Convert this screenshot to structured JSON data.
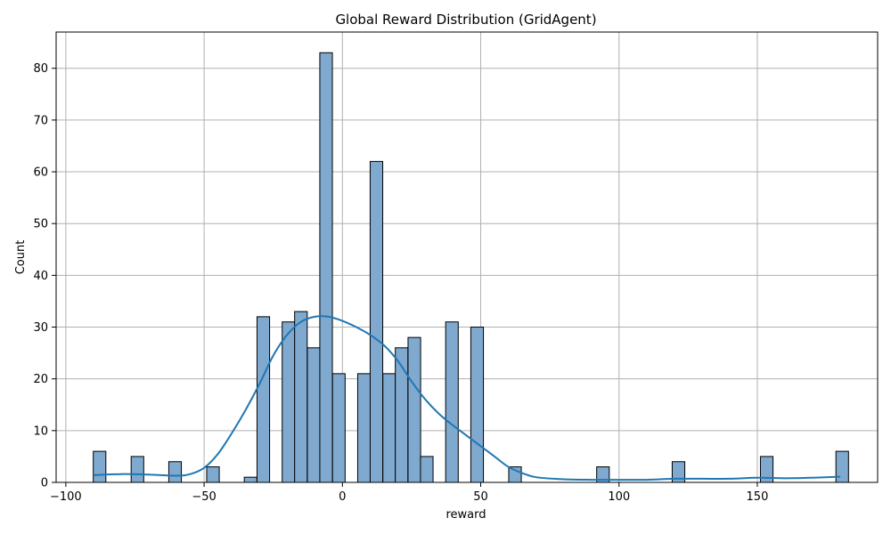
{
  "chart_data": {
    "type": "bar",
    "subtype": "histogram-with-kde",
    "title": "Global Reward Distribution (GridAgent)",
    "xlabel": "reward",
    "ylabel": "Count",
    "xlim": [
      -103.5,
      193.5
    ],
    "ylim": [
      0,
      87
    ],
    "xticks": [
      -100,
      -50,
      0,
      50,
      100,
      150
    ],
    "xtick_labels": [
      "−100",
      "−50",
      "0",
      "50",
      "100",
      "150"
    ],
    "yticks": [
      0,
      10,
      20,
      30,
      40,
      50,
      60,
      70,
      80
    ],
    "ytick_labels": [
      "0",
      "10",
      "20",
      "30",
      "40",
      "50",
      "60",
      "70",
      "80"
    ],
    "grid": true,
    "bin_width": 4.55,
    "bins": [
      {
        "x": -87.8,
        "count": 6
      },
      {
        "x": -74.1,
        "count": 5
      },
      {
        "x": -60.5,
        "count": 4
      },
      {
        "x": -46.8,
        "count": 3
      },
      {
        "x": -33.2,
        "count": 1
      },
      {
        "x": -28.6,
        "count": 32
      },
      {
        "x": -19.5,
        "count": 31
      },
      {
        "x": -15.0,
        "count": 33
      },
      {
        "x": -10.4,
        "count": 26
      },
      {
        "x": -5.9,
        "count": 83
      },
      {
        "x": -1.3,
        "count": 21
      },
      {
        "x": 7.8,
        "count": 21
      },
      {
        "x": 12.3,
        "count": 62
      },
      {
        "x": 16.9,
        "count": 21
      },
      {
        "x": 21.4,
        "count": 26
      },
      {
        "x": 26.0,
        "count": 28
      },
      {
        "x": 30.5,
        "count": 5
      },
      {
        "x": 39.6,
        "count": 31
      },
      {
        "x": 48.7,
        "count": 30
      },
      {
        "x": 62.4,
        "count": 3
      },
      {
        "x": 94.2,
        "count": 3
      },
      {
        "x": 121.5,
        "count": 4
      },
      {
        "x": 153.4,
        "count": 5
      },
      {
        "x": 180.7,
        "count": 6
      }
    ],
    "kde": {
      "color": "#1f77b4",
      "x": [
        -90,
        -80,
        -70,
        -60,
        -55,
        -50,
        -45,
        -40,
        -35,
        -30,
        -25,
        -20,
        -15,
        -10,
        -5,
        0,
        5,
        10,
        15,
        20,
        25,
        30,
        35,
        40,
        45,
        50,
        55,
        60,
        65,
        70,
        80,
        90,
        100,
        110,
        120,
        130,
        140,
        150,
        160,
        170,
        180
      ],
      "y": [
        1.4,
        1.6,
        1.5,
        1.3,
        1.6,
        2.8,
        5.5,
        9.5,
        14.0,
        19.0,
        24.5,
        28.5,
        31.0,
        32.0,
        32.0,
        31.2,
        30.0,
        28.5,
        26.5,
        23.5,
        19.5,
        16.0,
        13.2,
        11.0,
        9.0,
        7.0,
        5.0,
        3.0,
        1.8,
        1.0,
        0.6,
        0.5,
        0.5,
        0.5,
        0.7,
        0.7,
        0.7,
        0.9,
        0.8,
        0.9,
        1.1
      ]
    },
    "colors": {
      "bar_fill": "#7fa9cf",
      "bar_edge": "#000000",
      "kde_line": "#1f77b4",
      "grid": "#b0b0b0"
    }
  }
}
